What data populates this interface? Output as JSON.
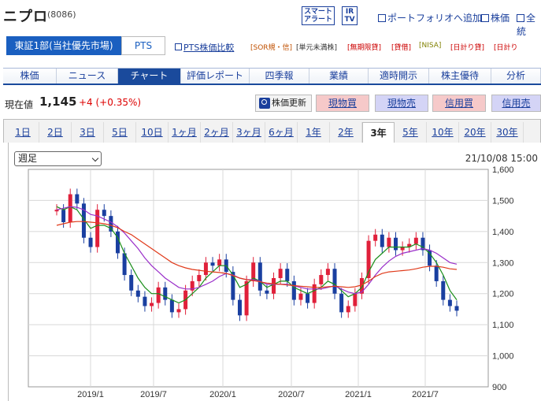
{
  "header": {
    "title": "ニプロ",
    "code": "(8086)",
    "smart_alert": "スマート\nアラート",
    "ir_tv": "IR\nTV",
    "portfolio_link": "ポートフォリオへ追加",
    "kabuka_link": "株価",
    "zen_link": "全統"
  },
  "market": {
    "selected": "東証1部(当社優先市場)",
    "pts": "PTS",
    "pts_compare": "PTS株価比較",
    "badges": [
      "[SOR規・信]",
      "[単元未満株]",
      "[無期限貸]",
      "[貸借]",
      "[NISA]",
      "[日計り貸]",
      "[日計り"
    ]
  },
  "nav": [
    "株価",
    "ニュース",
    "チャート",
    "評価レポート",
    "四季報",
    "業績",
    "適時開示",
    "株主優待",
    "分析"
  ],
  "nav_active": "チャート",
  "price": {
    "label": "現在値",
    "value": "1,145",
    "change": "+4 (+0.35%)"
  },
  "buttons": {
    "refresh": "株価更新",
    "buy": "現物買",
    "sell": "現物売",
    "margin_buy": "信用買",
    "margin_sell": "信用売"
  },
  "colors": {
    "accent": "#1a4a9c",
    "buy_bg": "#f6c9c9",
    "sell_bg": "#d4d4f6"
  },
  "periods": [
    "1日",
    "2日",
    "3日",
    "5日",
    "10日",
    "1ヶ月",
    "2ヶ月",
    "3ヶ月",
    "6ヶ月",
    "1年",
    "2年",
    "3年",
    "5年",
    "10年",
    "20年",
    "30年"
  ],
  "period_active": "3年",
  "chart_controls": {
    "interval": "週足",
    "timestamp": "21/10/08 15:00"
  },
  "chart_data": {
    "type": "line",
    "subtype": "candlestick",
    "x_ticks": [
      "2019/1",
      "2019/7",
      "2020/1",
      "2020/7",
      "2021/1",
      "2021/7"
    ],
    "y_ticks": [
      "1,600",
      "1,500",
      "1,400",
      "1,300",
      "1,200",
      "1,100",
      "1,000",
      "900"
    ],
    "ylim": [
      900,
      1600
    ],
    "series": [
      {
        "name": "close",
        "color": "#1a3fa0",
        "values": [
          1470,
          1430,
          1520,
          1490,
          1380,
          1350,
          1470,
          1450,
          1400,
          1330,
          1260,
          1210,
          1190,
          1160,
          1170,
          1220,
          1180,
          1140,
          1150,
          1210,
          1240,
          1260,
          1300,
          1290,
          1310,
          1270,
          1180,
          1130,
          1240,
          1300,
          1210,
          1200,
          1250,
          1280,
          1240,
          1180,
          1200,
          1170,
          1230,
          1260,
          1280,
          1200,
          1140,
          1160,
          1200,
          1250,
          1370,
          1390,
          1350,
          1380,
          1340,
          1350,
          1360,
          1380,
          1340,
          1290,
          1240,
          1180,
          1160,
          1145
        ]
      },
      {
        "name": "ma13",
        "color": "#1a8f1a",
        "values": [
          1480,
          1470,
          1480,
          1470,
          1440,
          1410,
          1420,
          1420,
          1410,
          1380,
          1330,
          1290,
          1250,
          1220,
          1200,
          1200,
          1190,
          1180,
          1170,
          1180,
          1200,
          1220,
          1250,
          1270,
          1290,
          1290,
          1260,
          1220,
          1230,
          1250,
          1240,
          1220,
          1230,
          1240,
          1240,
          1220,
          1210,
          1200,
          1210,
          1220,
          1240,
          1230,
          1210,
          1190,
          1200,
          1220,
          1270,
          1310,
          1330,
          1350,
          1350,
          1350,
          1350,
          1360,
          1350,
          1330,
          1300,
          1260,
          1210,
          1180
        ]
      },
      {
        "name": "ma26",
        "color": "#9a2fc9",
        "values": [
          1470,
          1475,
          1480,
          1478,
          1470,
          1455,
          1450,
          1440,
          1430,
          1415,
          1395,
          1370,
          1345,
          1315,
          1290,
          1270,
          1250,
          1235,
          1220,
          1215,
          1215,
          1220,
          1230,
          1240,
          1255,
          1265,
          1260,
          1250,
          1245,
          1245,
          1240,
          1230,
          1230,
          1230,
          1230,
          1225,
          1220,
          1215,
          1215,
          1215,
          1220,
          1225,
          1215,
          1205,
          1200,
          1205,
          1230,
          1260,
          1285,
          1305,
          1320,
          1330,
          1335,
          1340,
          1345,
          1340,
          1330,
          1315,
          1300,
          1295
        ]
      },
      {
        "name": "ma52",
        "color": "#e03a1a",
        "values": [
          1420,
          1425,
          1430,
          1432,
          1432,
          1430,
          1428,
          1425,
          1420,
          1412,
          1400,
          1390,
          1375,
          1360,
          1345,
          1330,
          1315,
          1300,
          1290,
          1283,
          1278,
          1275,
          1272,
          1270,
          1268,
          1265,
          1258,
          1250,
          1245,
          1242,
          1238,
          1234,
          1232,
          1230,
          1228,
          1226,
          1224,
          1222,
          1220,
          1220,
          1222,
          1224,
          1222,
          1220,
          1222,
          1228,
          1240,
          1255,
          1265,
          1270,
          1272,
          1274,
          1276,
          1280,
          1285,
          1288,
          1288,
          1285,
          1280,
          1278
        ]
      }
    ]
  }
}
